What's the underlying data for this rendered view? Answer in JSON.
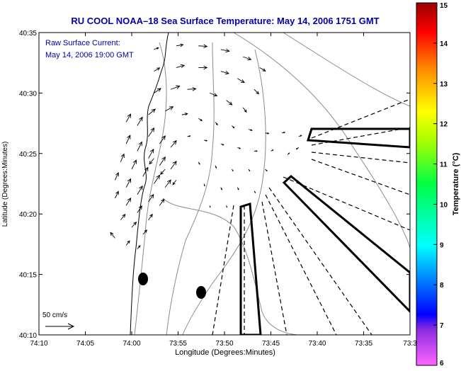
{
  "chart_data": {
    "type": "quiver",
    "title": "RU COOL  NOAA–18  Sea Surface Temperature:  May 14, 2006 1751 GMT",
    "annotation": {
      "line1": "Raw Surface Current:",
      "line2": "May 14, 2006 19:00 GMT"
    },
    "xlabel": "Longitude (Degrees:Minutes)",
    "ylabel": "Latitude (Degrees:Minutes)",
    "xlim": [
      -74.1667,
      -73.5
    ],
    "ylim": [
      40.1667,
      40.5833
    ],
    "x_ticks": [
      {
        "v": -74.1667,
        "label": "74:10"
      },
      {
        "v": -74.0833,
        "label": "74:05"
      },
      {
        "v": -74.0,
        "label": "74:00"
      },
      {
        "v": -73.9167,
        "label": "73:55"
      },
      {
        "v": -73.8333,
        "label": "73:50"
      },
      {
        "v": -73.75,
        "label": "73:45"
      },
      {
        "v": -73.6667,
        "label": "73:40"
      },
      {
        "v": -73.5833,
        "label": "73:35"
      },
      {
        "v": -73.5,
        "label": "73:3"
      }
    ],
    "y_ticks": [
      {
        "v": 40.1667,
        "label": "40:10"
      },
      {
        "v": 40.25,
        "label": "40:15"
      },
      {
        "v": 40.3333,
        "label": "40:20"
      },
      {
        "v": 40.4167,
        "label": "40:25"
      },
      {
        "v": 40.5,
        "label": "40:30"
      },
      {
        "v": 40.5833,
        "label": "40:35"
      }
    ],
    "scale_arrow": {
      "label": "50 cm/s",
      "speed_cms": 50
    },
    "colorbar": {
      "label": "Temperature (°C)",
      "min": 6,
      "max": 15,
      "ticks": [
        "6",
        "7",
        "8",
        "9",
        "10",
        "11",
        "12",
        "13",
        "14",
        "15"
      ]
    },
    "current_vectors": [
      {
        "lon": -73.96,
        "lat": 40.56,
        "u": 8,
        "v": 3
      },
      {
        "lon": -73.92,
        "lat": 40.565,
        "u": 12,
        "v": 2
      },
      {
        "lon": -73.88,
        "lat": 40.565,
        "u": 15,
        "v": -1
      },
      {
        "lon": -73.84,
        "lat": 40.56,
        "u": 15,
        "v": -3
      },
      {
        "lon": -73.8,
        "lat": 40.55,
        "u": 14,
        "v": -5
      },
      {
        "lon": -73.77,
        "lat": 40.535,
        "u": 10,
        "v": -6
      },
      {
        "lon": -73.96,
        "lat": 40.53,
        "u": 10,
        "v": 6
      },
      {
        "lon": -73.92,
        "lat": 40.535,
        "u": 14,
        "v": 4
      },
      {
        "lon": -73.88,
        "lat": 40.535,
        "u": 15,
        "v": 0
      },
      {
        "lon": -73.84,
        "lat": 40.53,
        "u": 14,
        "v": -4
      },
      {
        "lon": -73.81,
        "lat": 40.52,
        "u": 12,
        "v": -7
      },
      {
        "lon": -73.78,
        "lat": 40.505,
        "u": 8,
        "v": -8
      },
      {
        "lon": -73.96,
        "lat": 40.5,
        "u": 12,
        "v": 8
      },
      {
        "lon": -73.93,
        "lat": 40.505,
        "u": 16,
        "v": 6
      },
      {
        "lon": -73.9,
        "lat": 40.505,
        "u": 15,
        "v": 1
      },
      {
        "lon": -73.86,
        "lat": 40.5,
        "u": 13,
        "v": -5
      },
      {
        "lon": -73.83,
        "lat": 40.49,
        "u": 10,
        "v": -8
      },
      {
        "lon": -73.8,
        "lat": 40.48,
        "u": 6,
        "v": -8
      },
      {
        "lon": -73.97,
        "lat": 40.47,
        "u": 12,
        "v": 10
      },
      {
        "lon": -73.94,
        "lat": 40.475,
        "u": 14,
        "v": 8
      },
      {
        "lon": -73.91,
        "lat": 40.47,
        "u": 10,
        "v": 2
      },
      {
        "lon": -73.88,
        "lat": 40.465,
        "u": 6,
        "v": -4
      },
      {
        "lon": -73.85,
        "lat": 40.46,
        "u": 4,
        "v": -5
      },
      {
        "lon": -73.82,
        "lat": 40.455,
        "u": 4,
        "v": -4
      },
      {
        "lon": -73.79,
        "lat": 40.45,
        "u": 6,
        "v": -2
      },
      {
        "lon": -73.76,
        "lat": 40.445,
        "u": 6,
        "v": -1
      },
      {
        "lon": -73.73,
        "lat": 40.445,
        "u": 5,
        "v": 1
      },
      {
        "lon": -73.7,
        "lat": 40.44,
        "u": 5,
        "v": 2
      },
      {
        "lon": -73.9,
        "lat": 40.44,
        "u": 5,
        "v": 1
      },
      {
        "lon": -73.87,
        "lat": 40.435,
        "u": 5,
        "v": -1
      },
      {
        "lon": -73.84,
        "lat": 40.43,
        "u": 5,
        "v": -2
      },
      {
        "lon": -73.81,
        "lat": 40.425,
        "u": 5,
        "v": -2
      },
      {
        "lon": -73.78,
        "lat": 40.42,
        "u": 5,
        "v": 0
      },
      {
        "lon": -73.75,
        "lat": 40.42,
        "u": 4,
        "v": 2
      },
      {
        "lon": -73.72,
        "lat": 40.415,
        "u": 3,
        "v": 3
      },
      {
        "lon": -73.7,
        "lat": 40.425,
        "u": -4,
        "v": -3
      },
      {
        "lon": -73.88,
        "lat": 40.405,
        "u": 2,
        "v": -4
      },
      {
        "lon": -73.85,
        "lat": 40.4,
        "u": 2,
        "v": -4
      },
      {
        "lon": -73.82,
        "lat": 40.395,
        "u": 2,
        "v": -3
      },
      {
        "lon": -73.79,
        "lat": 40.395,
        "u": 2,
        "v": -3
      },
      {
        "lon": -73.76,
        "lat": 40.395,
        "u": 3,
        "v": -3
      },
      {
        "lon": -73.87,
        "lat": 40.375,
        "u": 1,
        "v": -4
      },
      {
        "lon": -73.84,
        "lat": 40.37,
        "u": 2,
        "v": -4
      },
      {
        "lon": -73.81,
        "lat": 40.37,
        "u": 2,
        "v": -4
      },
      {
        "lon": -73.78,
        "lat": 40.365,
        "u": 2,
        "v": -3
      },
      {
        "lon": -73.86,
        "lat": 40.345,
        "u": 1,
        "v": -3
      },
      {
        "lon": -73.83,
        "lat": 40.345,
        "u": 1,
        "v": -3
      },
      {
        "lon": -73.8,
        "lat": 40.345,
        "u": 2,
        "v": -3
      },
      {
        "lon": -74.01,
        "lat": 40.46,
        "u": 8,
        "v": 14
      },
      {
        "lon": -73.99,
        "lat": 40.455,
        "u": 9,
        "v": 15
      },
      {
        "lon": -73.97,
        "lat": 40.44,
        "u": 10,
        "v": 15
      },
      {
        "lon": -73.95,
        "lat": 40.43,
        "u": 10,
        "v": 14
      },
      {
        "lon": -73.93,
        "lat": 40.425,
        "u": 10,
        "v": 12
      },
      {
        "lon": -74.01,
        "lat": 40.43,
        "u": 7,
        "v": 15
      },
      {
        "lon": -73.99,
        "lat": 40.42,
        "u": 8,
        "v": 16
      },
      {
        "lon": -73.97,
        "lat": 40.41,
        "u": 9,
        "v": 16
      },
      {
        "lon": -73.95,
        "lat": 40.4,
        "u": 10,
        "v": 15
      },
      {
        "lon": -73.93,
        "lat": 40.395,
        "u": 10,
        "v": 14
      },
      {
        "lon": -74.02,
        "lat": 40.405,
        "u": 6,
        "v": 14
      },
      {
        "lon": -74.0,
        "lat": 40.395,
        "u": 8,
        "v": 16
      },
      {
        "lon": -73.98,
        "lat": 40.385,
        "u": 9,
        "v": 16
      },
      {
        "lon": -73.96,
        "lat": 40.375,
        "u": 10,
        "v": 15
      },
      {
        "lon": -73.94,
        "lat": 40.37,
        "u": 10,
        "v": 13
      },
      {
        "lon": -74.03,
        "lat": 40.38,
        "u": 6,
        "v": 13
      },
      {
        "lon": -74.01,
        "lat": 40.37,
        "u": 8,
        "v": 15
      },
      {
        "lon": -73.99,
        "lat": 40.36,
        "u": 9,
        "v": 15
      },
      {
        "lon": -73.97,
        "lat": 40.35,
        "u": 9,
        "v": 13
      },
      {
        "lon": -73.95,
        "lat": 40.345,
        "u": 8,
        "v": 11
      },
      {
        "lon": -74.03,
        "lat": 40.355,
        "u": 6,
        "v": 12
      },
      {
        "lon": -74.01,
        "lat": 40.345,
        "u": 8,
        "v": 13
      },
      {
        "lon": -73.99,
        "lat": 40.335,
        "u": 8,
        "v": 12
      },
      {
        "lon": -73.97,
        "lat": 40.325,
        "u": 7,
        "v": 10
      },
      {
        "lon": -74.02,
        "lat": 40.325,
        "u": 8,
        "v": 10
      },
      {
        "lon": -74.0,
        "lat": 40.315,
        "u": 8,
        "v": 9
      },
      {
        "lon": -73.98,
        "lat": 40.305,
        "u": 7,
        "v": 8
      },
      {
        "lon": -74.03,
        "lat": 40.3,
        "u": -8,
        "v": 10
      },
      {
        "lon": -74.01,
        "lat": 40.29,
        "u": 6,
        "v": 8
      },
      {
        "lon": -73.99,
        "lat": 40.285,
        "u": 5,
        "v": 6
      },
      {
        "lon": -73.96,
        "lat": 40.41,
        "u": -8,
        "v": -10
      },
      {
        "lon": -73.94,
        "lat": 40.395,
        "u": -8,
        "v": -9
      },
      {
        "lon": -73.92,
        "lat": 40.38,
        "u": -6,
        "v": -8
      }
    ]
  }
}
